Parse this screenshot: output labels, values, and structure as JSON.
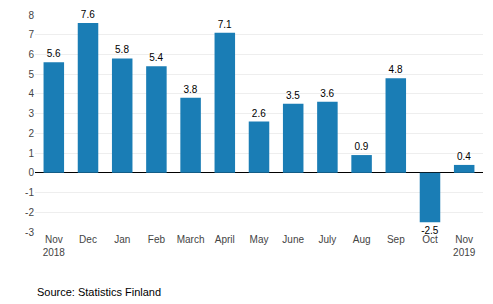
{
  "chart_data": {
    "type": "bar",
    "categories": [
      "Nov\n2018",
      "Dec",
      "Jan",
      "Feb",
      "March",
      "April",
      "May",
      "June",
      "July",
      "Aug",
      "Sep",
      "Oct",
      "Nov\n2019"
    ],
    "values": [
      5.6,
      7.6,
      5.8,
      5.4,
      3.8,
      7.1,
      2.6,
      3.5,
      3.6,
      0.9,
      4.8,
      -2.5,
      0.4
    ],
    "color": "#1a7db5",
    "ylim": [
      -3,
      8
    ],
    "yticks": [
      -3,
      -2,
      -1,
      0,
      1,
      2,
      3,
      4,
      5,
      6,
      7,
      8
    ],
    "grid": true,
    "data_labels": true,
    "annotations": [
      "Source: Statistics Finland"
    ]
  }
}
